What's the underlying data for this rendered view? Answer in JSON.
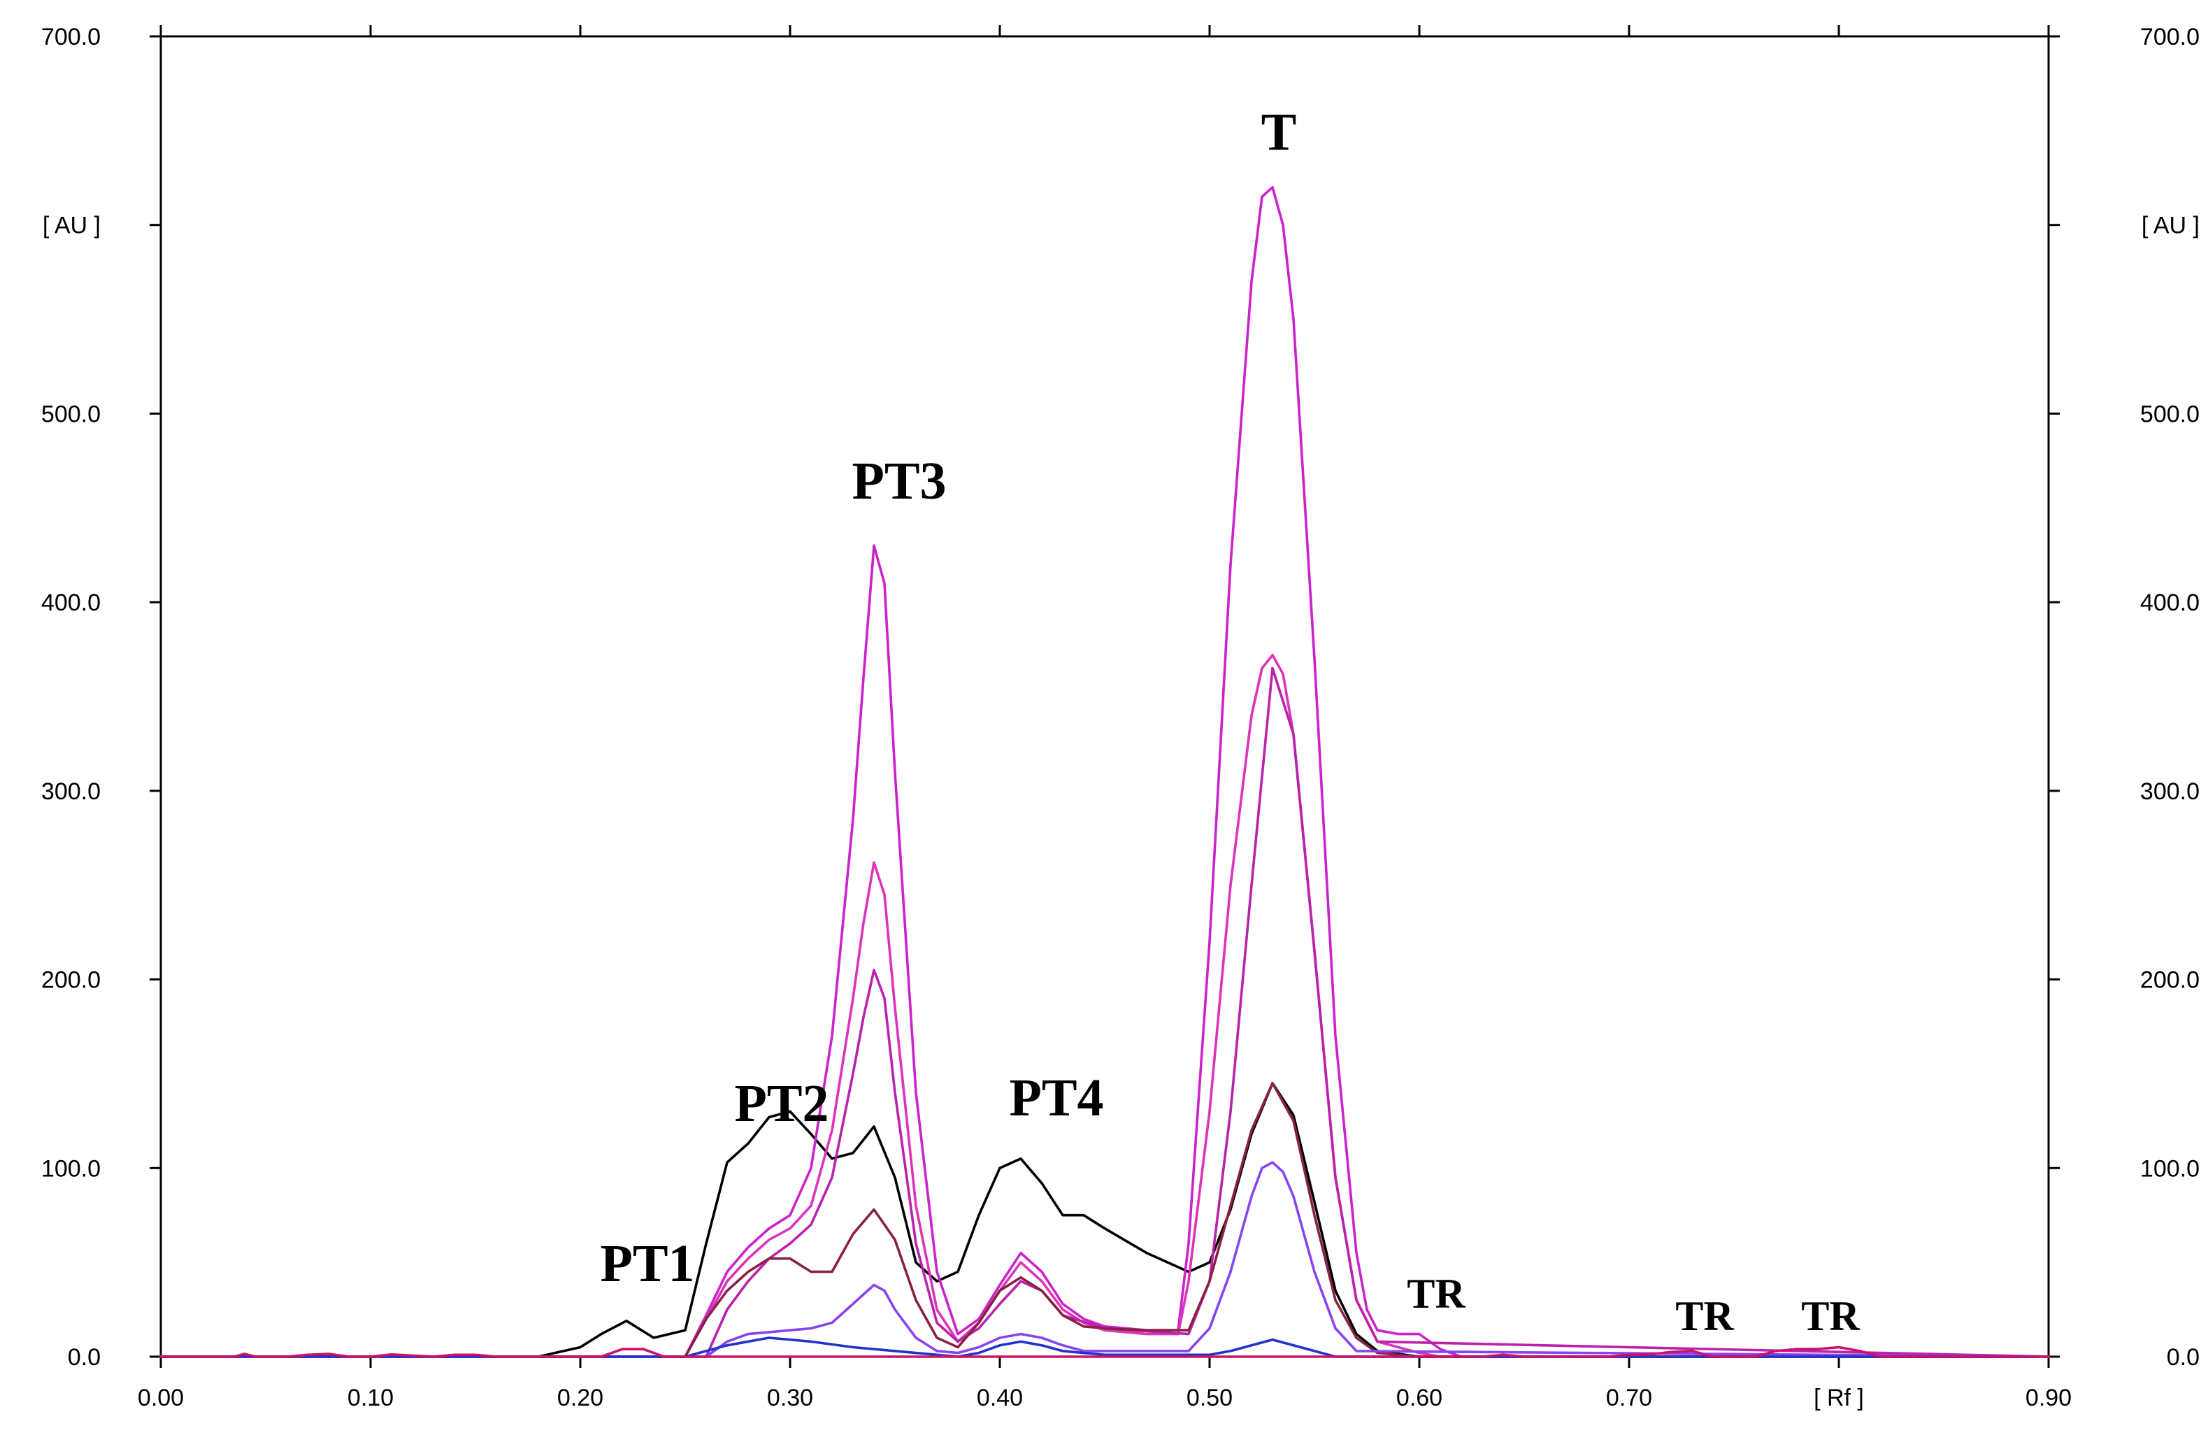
{
  "chart_data": {
    "type": "line",
    "title": "",
    "xlabel": "[ Rf ]",
    "ylabel": "[ AU ]",
    "xlim": [
      0.0,
      0.9
    ],
    "ylim": [
      0.0,
      700.0
    ],
    "grid": false,
    "x_ticks": [
      0.0,
      0.1,
      0.2,
      0.3,
      0.4,
      0.5,
      0.6,
      0.7,
      0.9
    ],
    "x_tick_labels": [
      "0.00",
      "0.10",
      "0.20",
      "0.30",
      "0.40",
      "0.50",
      "0.60",
      "0.70",
      "0.90"
    ],
    "x_unit_tick": 0.8,
    "y_ticks": [
      0,
      100,
      200,
      300,
      400,
      500,
      700
    ],
    "y_tick_labels": [
      "0.0",
      "100.0",
      "200.0",
      "300.0",
      "400.0",
      "500.0",
      "700.0"
    ],
    "y_unit_tick": 600,
    "annotations": [
      {
        "text": "PT1",
        "x": 0.232,
        "y": 40,
        "size": "large"
      },
      {
        "text": "PT2",
        "x": 0.296,
        "y": 125,
        "size": "large"
      },
      {
        "text": "PT3",
        "x": 0.352,
        "y": 455,
        "size": "large"
      },
      {
        "text": "PT4",
        "x": 0.427,
        "y": 128,
        "size": "large"
      },
      {
        "text": "T",
        "x": 0.533,
        "y": 640,
        "size": "large"
      },
      {
        "text": "TR",
        "x": 0.608,
        "y": 26,
        "size": "small"
      },
      {
        "text": "TR",
        "x": 0.736,
        "y": 14,
        "size": "small"
      },
      {
        "text": "TR",
        "x": 0.796,
        "y": 14,
        "size": "small"
      }
    ],
    "series": [
      {
        "name": "black",
        "color": "#000000",
        "x": [
          0.0,
          0.18,
          0.2,
          0.21,
          0.222,
          0.235,
          0.25,
          0.26,
          0.27,
          0.28,
          0.29,
          0.3,
          0.31,
          0.32,
          0.33,
          0.34,
          0.35,
          0.36,
          0.37,
          0.38,
          0.39,
          0.4,
          0.41,
          0.42,
          0.43,
          0.44,
          0.45,
          0.47,
          0.49,
          0.5,
          0.51,
          0.52,
          0.53,
          0.54,
          0.55,
          0.56,
          0.57,
          0.58,
          0.6,
          0.9
        ],
        "y": [
          0,
          0,
          5,
          12,
          19,
          10,
          14,
          60,
          103,
          113,
          127,
          130,
          118,
          105,
          108,
          122,
          95,
          50,
          40,
          45,
          75,
          100,
          105,
          92,
          75,
          75,
          68,
          55,
          45,
          50,
          78,
          118,
          145,
          128,
          82,
          35,
          12,
          3,
          0,
          0
        ]
      },
      {
        "name": "magenta-high",
        "color": "#cc22cc",
        "x": [
          0.0,
          0.25,
          0.26,
          0.27,
          0.28,
          0.29,
          0.3,
          0.31,
          0.32,
          0.33,
          0.335,
          0.34,
          0.345,
          0.35,
          0.36,
          0.37,
          0.38,
          0.39,
          0.4,
          0.41,
          0.42,
          0.43,
          0.44,
          0.45,
          0.47,
          0.485,
          0.49,
          0.5,
          0.51,
          0.52,
          0.525,
          0.53,
          0.535,
          0.54,
          0.55,
          0.56,
          0.57,
          0.575,
          0.58,
          0.59,
          0.6,
          0.61,
          0.62,
          0.9
        ],
        "y": [
          0,
          0,
          22,
          45,
          58,
          68,
          75,
          100,
          170,
          285,
          360,
          430,
          410,
          310,
          140,
          45,
          12,
          20,
          38,
          55,
          45,
          28,
          20,
          16,
          14,
          14,
          60,
          220,
          420,
          570,
          615,
          620,
          600,
          550,
          370,
          170,
          55,
          25,
          14,
          12,
          12,
          4,
          0,
          0
        ]
      },
      {
        "name": "magenta-mid",
        "color": "#dd33bb",
        "x": [
          0.0,
          0.25,
          0.26,
          0.27,
          0.28,
          0.29,
          0.3,
          0.31,
          0.32,
          0.33,
          0.335,
          0.34,
          0.345,
          0.35,
          0.36,
          0.37,
          0.38,
          0.39,
          0.4,
          0.41,
          0.42,
          0.43,
          0.44,
          0.45,
          0.47,
          0.485,
          0.49,
          0.5,
          0.51,
          0.52,
          0.525,
          0.53,
          0.535,
          0.54,
          0.55,
          0.56,
          0.57,
          0.58,
          0.6,
          0.61,
          0.9
        ],
        "y": [
          0,
          0,
          20,
          40,
          52,
          62,
          68,
          80,
          120,
          190,
          230,
          262,
          245,
          185,
          80,
          25,
          8,
          18,
          35,
          50,
          40,
          25,
          18,
          14,
          12,
          12,
          40,
          130,
          250,
          340,
          365,
          372,
          362,
          330,
          215,
          95,
          30,
          8,
          2,
          0,
          0
        ]
      },
      {
        "name": "magenta-low",
        "color": "#bb22aa",
        "x": [
          0.0,
          0.26,
          0.27,
          0.28,
          0.29,
          0.3,
          0.31,
          0.32,
          0.33,
          0.335,
          0.34,
          0.345,
          0.35,
          0.36,
          0.37,
          0.38,
          0.39,
          0.4,
          0.41,
          0.42,
          0.43,
          0.45,
          0.49,
          0.5,
          0.51,
          0.52,
          0.53,
          0.54,
          0.55,
          0.56,
          0.57,
          0.58,
          0.9
        ],
        "y": [
          0,
          0,
          25,
          40,
          52,
          60,
          70,
          95,
          150,
          180,
          205,
          190,
          140,
          60,
          18,
          8,
          15,
          28,
          40,
          35,
          22,
          15,
          12,
          40,
          130,
          250,
          365,
          330,
          215,
          95,
          30,
          8,
          0
        ]
      },
      {
        "name": "dark-red",
        "color": "#882244",
        "x": [
          0.0,
          0.25,
          0.26,
          0.27,
          0.28,
          0.29,
          0.3,
          0.31,
          0.32,
          0.33,
          0.34,
          0.35,
          0.36,
          0.37,
          0.38,
          0.39,
          0.4,
          0.41,
          0.42,
          0.43,
          0.44,
          0.45,
          0.47,
          0.49,
          0.5,
          0.51,
          0.52,
          0.53,
          0.54,
          0.55,
          0.56,
          0.57,
          0.58,
          0.6,
          0.9
        ],
        "y": [
          0,
          0,
          20,
          35,
          45,
          52,
          52,
          45,
          45,
          65,
          78,
          62,
          30,
          10,
          5,
          18,
          35,
          42,
          35,
          22,
          16,
          15,
          14,
          14,
          40,
          80,
          120,
          145,
          125,
          75,
          30,
          10,
          2,
          0,
          0
        ]
      },
      {
        "name": "violet",
        "color": "#8844ee",
        "x": [
          0.0,
          0.26,
          0.27,
          0.28,
          0.29,
          0.3,
          0.31,
          0.32,
          0.33,
          0.34,
          0.345,
          0.35,
          0.36,
          0.37,
          0.38,
          0.39,
          0.4,
          0.41,
          0.42,
          0.43,
          0.44,
          0.49,
          0.5,
          0.51,
          0.52,
          0.525,
          0.53,
          0.535,
          0.54,
          0.55,
          0.56,
          0.57,
          0.9
        ],
        "y": [
          0,
          0,
          8,
          12,
          13,
          14,
          15,
          18,
          28,
          38,
          35,
          25,
          10,
          3,
          2,
          5,
          10,
          12,
          10,
          6,
          3,
          3,
          15,
          45,
          85,
          100,
          103,
          98,
          85,
          45,
          15,
          3,
          0
        ]
      },
      {
        "name": "blue",
        "color": "#2233cc",
        "x": [
          0.0,
          0.25,
          0.27,
          0.29,
          0.31,
          0.33,
          0.35,
          0.37,
          0.38,
          0.39,
          0.4,
          0.41,
          0.42,
          0.43,
          0.45,
          0.5,
          0.51,
          0.52,
          0.53,
          0.54,
          0.55,
          0.56,
          0.9
        ],
        "y": [
          0,
          0,
          6,
          10,
          8,
          5,
          3,
          1,
          0,
          2,
          6,
          8,
          6,
          3,
          1,
          1,
          3,
          6,
          9,
          6,
          3,
          0,
          0
        ]
      },
      {
        "name": "baseline-specks",
        "color": "#cc1166",
        "x": [
          0.0,
          0.035,
          0.04,
          0.045,
          0.06,
          0.07,
          0.08,
          0.09,
          0.1,
          0.11,
          0.13,
          0.14,
          0.15,
          0.16,
          0.21,
          0.22,
          0.23,
          0.24,
          0.63,
          0.64,
          0.65,
          0.66,
          0.69,
          0.7,
          0.71,
          0.72,
          0.73,
          0.74,
          0.76,
          0.77,
          0.78,
          0.79,
          0.8,
          0.81,
          0.82,
          0.9
        ],
        "y": [
          0,
          0,
          1.5,
          0,
          0,
          1,
          1.5,
          0,
          0,
          1.2,
          0,
          1,
          1,
          0,
          0,
          4,
          4,
          0,
          0,
          1,
          0,
          0,
          0,
          1,
          1.2,
          2.5,
          3,
          0,
          0,
          3,
          4,
          4,
          5,
          3,
          0,
          0
        ]
      }
    ]
  }
}
